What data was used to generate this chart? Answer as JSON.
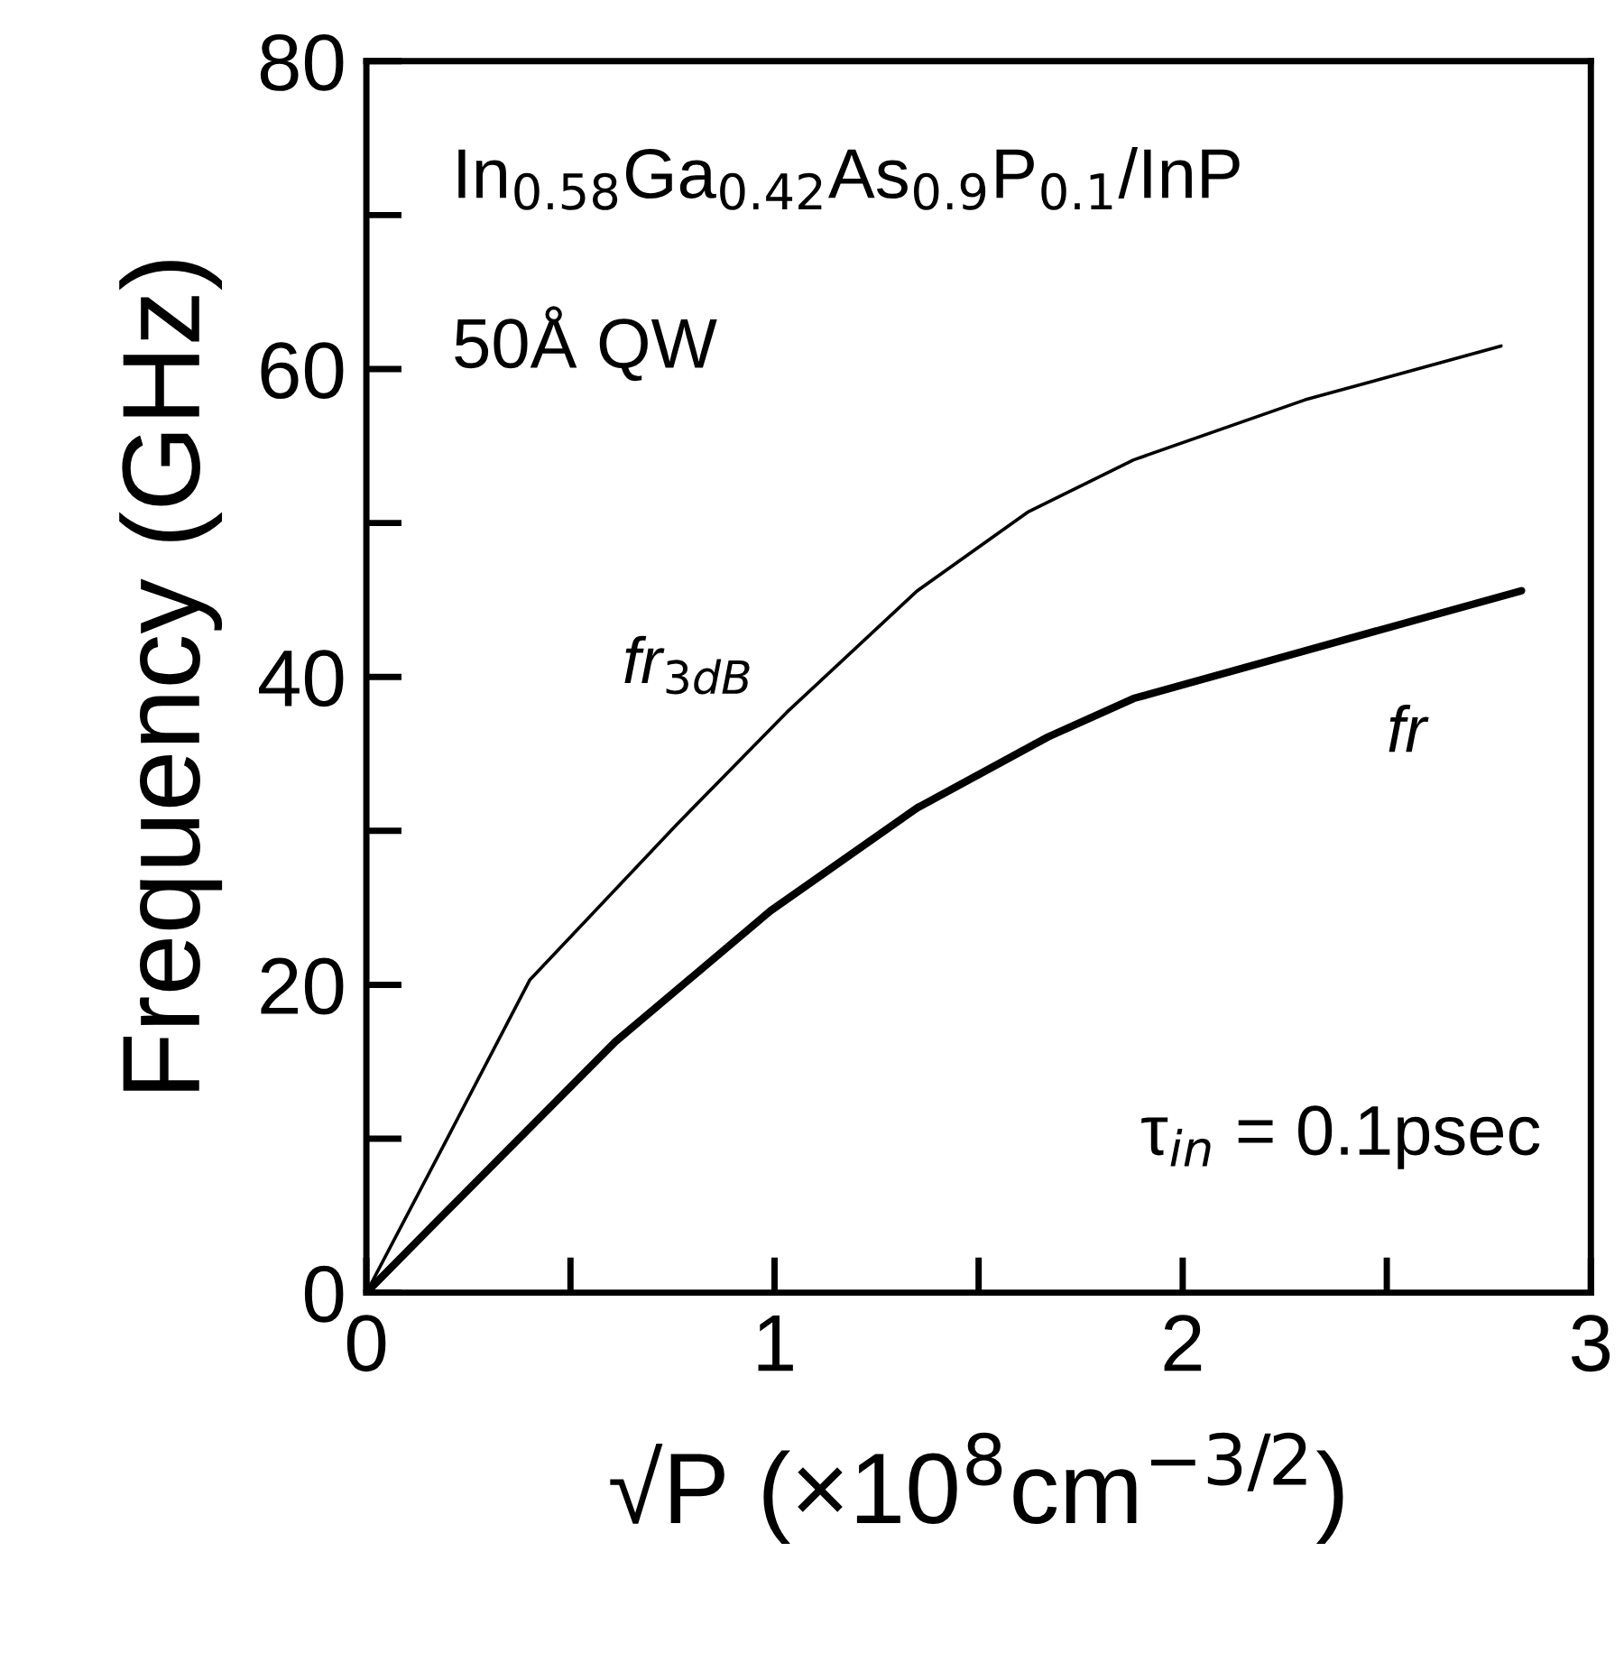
{
  "chart_data": {
    "type": "line",
    "xlabel": "√P (×10$^{8}$cm$^{−3/2}$)",
    "ylabel": "Frequency (GHz)",
    "xlim": [
      0,
      3
    ],
    "ylim": [
      0,
      80
    ],
    "xticks": [
      0,
      1,
      2,
      3
    ],
    "yticks": [
      0,
      20,
      40,
      60,
      80
    ],
    "grid": false,
    "legend": false,
    "marker": "none",
    "line_style": "solid",
    "annotations": [
      "In$_{0.58}$Ga$_{0.42}$As$_{0.9}$P$_{0.1}$/InP",
      "50Å QW",
      "τ$_{in}$ = 0.1psec"
    ],
    "series": [
      {
        "name": "fr$_{3dB}$",
        "color": "#000000",
        "x": [
          0,
          0.19,
          0.4,
          0.76,
          1.03,
          1.35,
          1.62,
          1.88,
          2.3,
          2.78
        ],
        "values": [
          0,
          9.6,
          20.3,
          30.4,
          37.7,
          45.6,
          50.7,
          54.1,
          58.0,
          61.5
        ]
      },
      {
        "name": "fr",
        "color": "#000000",
        "x": [
          0,
          0.19,
          0.61,
          0.99,
          1.35,
          1.67,
          1.88,
          2.3,
          2.83
        ],
        "values": [
          0,
          5.1,
          16.3,
          24.8,
          31.5,
          36.1,
          38.6,
          41.7,
          45.6
        ]
      }
    ]
  }
}
